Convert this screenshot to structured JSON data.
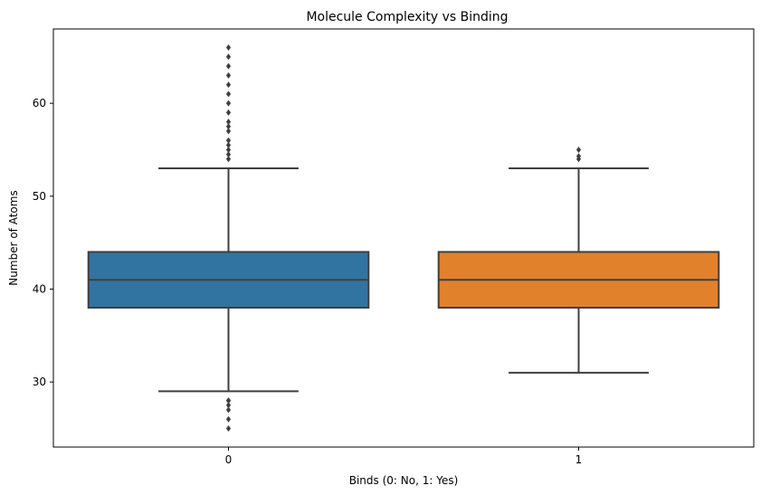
{
  "chart_data": {
    "type": "box",
    "title": "Molecule Complexity vs Binding",
    "xlabel": "Binds (0: No, 1: Yes)",
    "ylabel": "Number of Atoms",
    "ylim": [
      23,
      68
    ],
    "yticks": [
      30,
      40,
      50,
      60
    ],
    "grid": false,
    "categories": [
      "0",
      "1"
    ],
    "boxes": [
      {
        "category": "0",
        "color": "#3274a1",
        "q1": 38,
        "median": 41,
        "q3": 44,
        "whisker_low": 29,
        "whisker_high": 53,
        "outliers": [
          25,
          26,
          27,
          27.5,
          28,
          28,
          54,
          54.5,
          55,
          55.5,
          56,
          57,
          57.5,
          58,
          59,
          60,
          61,
          62,
          63,
          64,
          65,
          66
        ]
      },
      {
        "category": "1",
        "color": "#e1812c",
        "q1": 38,
        "median": 41,
        "q3": 44,
        "whisker_low": 31,
        "whisker_high": 53,
        "outliers": [
          54,
          54.3,
          55
        ]
      }
    ]
  }
}
